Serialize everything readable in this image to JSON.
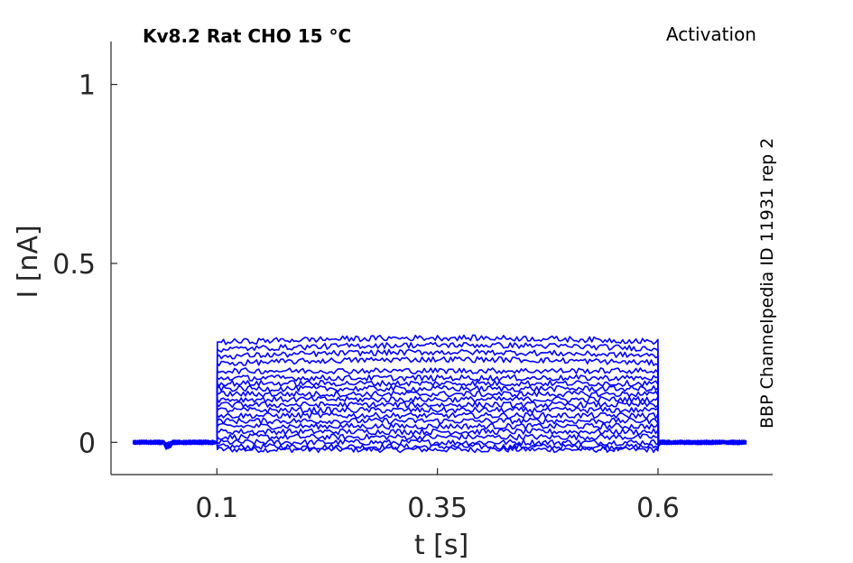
{
  "chart_data": {
    "type": "line",
    "title": "Kv8.2  Rat  CHO  15 °C",
    "protocol": "Activation",
    "source_label": "BBP Channelpedia ID 11931 rep 2",
    "xlabel": "t [s]",
    "ylabel": "I [nA]",
    "xlim": [
      -0.02,
      0.73
    ],
    "ylim": [
      -0.09,
      1.12
    ],
    "x_ticks": [
      0.1,
      0.35,
      0.6
    ],
    "x_tick_labels": [
      "0.1",
      "0.35",
      "0.6"
    ],
    "y_ticks": [
      0,
      0.5,
      1
    ],
    "y_tick_labels": [
      "0",
      "0.5",
      "1"
    ],
    "grid": false,
    "color": "#0000ff",
    "step_start_s": 0.1,
    "step_end_s": 0.6,
    "record_start_s": 0.005,
    "record_end_s": 0.7,
    "step_levels_nA": [
      -0.02,
      -0.012,
      0.0,
      0.015,
      0.03,
      0.045,
      0.06,
      0.075,
      0.09,
      0.105,
      0.12,
      0.135,
      0.15,
      0.165,
      0.18,
      0.2,
      0.22,
      0.24,
      0.26,
      0.28
    ],
    "series_count": 20
  }
}
